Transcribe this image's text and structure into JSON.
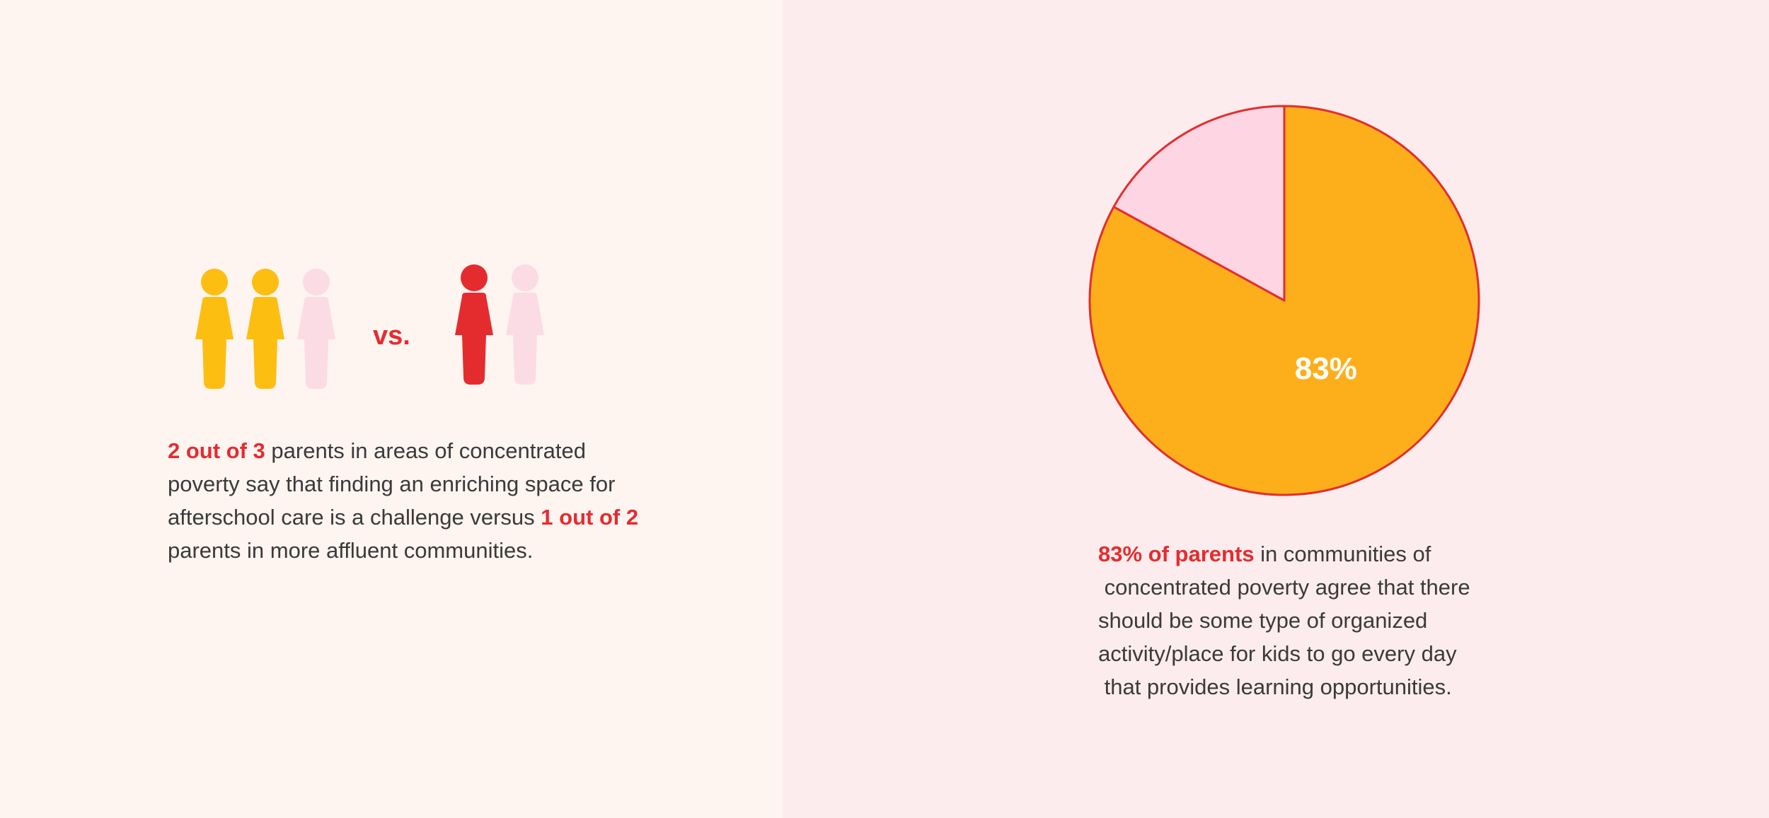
{
  "colors": {
    "left_bg": "#fef4f0",
    "right_bg": "#fdeced",
    "accent_red": "#e42c2f",
    "gold": "#fdbe12",
    "pale_pink": "#fbdbe4",
    "pie_orange": "#fdaf1b",
    "pie_pink": "#fdd5e3"
  },
  "comparison": {
    "group_a_icons": [
      "gold",
      "gold",
      "pale_pink"
    ],
    "vs_label": "vs.",
    "group_b_icons": [
      "accent_red",
      "pale_pink"
    ],
    "text": {
      "highlight_1": "2 out of 3",
      "line_1_rest": " parents in areas of concentrated",
      "line_2": "poverty say that finding an enriching space for",
      "line_3_pre": "afterschool care is a challenge versus ",
      "highlight_2": "1 out of 2",
      "line_4": "parents in more affluent communities."
    }
  },
  "chart_data": {
    "type": "pie",
    "slices": [
      {
        "label": "83%",
        "value": 83,
        "color": "#fdaf1b"
      },
      {
        "value": 17,
        "color": "#fdd5e3"
      }
    ],
    "start_angle_deg": 0,
    "direction": "clockwise",
    "outline_color": "#e42c2f"
  },
  "pie_caption": {
    "highlight": "83% of parents",
    "line_1_rest": " in communities of",
    "line_2": " concentrated poverty agree that there",
    "line_3": "should be some type of organized",
    "line_4": "activity/place for kids to go every day",
    "line_5": " that provides learning opportunities."
  }
}
